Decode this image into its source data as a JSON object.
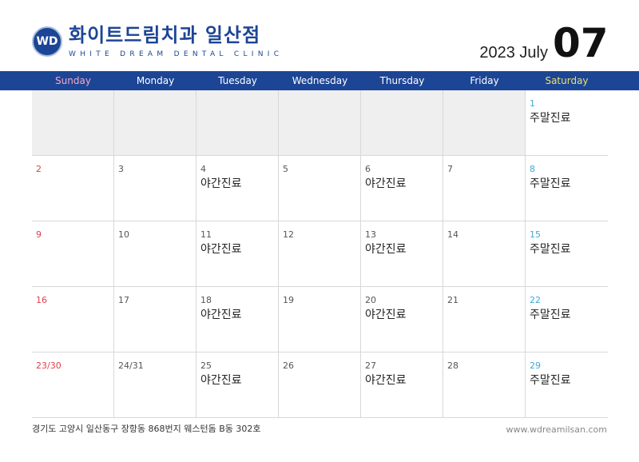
{
  "header": {
    "logo_text": "WD",
    "brand_ko": "화이트드림치과 일산점",
    "brand_en": "WHITE DREAM DENTAL CLINIC",
    "year_month": "2023 July",
    "month_num": "07"
  },
  "colors": {
    "bar": "#1d4595",
    "sunday_header": "#f4a8c8",
    "saturday_header": "#e8e070",
    "sunday": "#e04050",
    "saturday": "#40a8d8"
  },
  "days": [
    "Sunday",
    "Monday",
    "Tuesday",
    "Wednesday",
    "Thursday",
    "Friday",
    "Saturday"
  ],
  "weeks": [
    [
      {
        "d": ""
      },
      {
        "d": ""
      },
      {
        "d": ""
      },
      {
        "d": ""
      },
      {
        "d": ""
      },
      {
        "d": ""
      },
      {
        "d": "1",
        "n": "주말진료"
      }
    ],
    [
      {
        "d": "2"
      },
      {
        "d": "3"
      },
      {
        "d": "4",
        "n": "야간진료"
      },
      {
        "d": "5"
      },
      {
        "d": "6",
        "n": "야간진료"
      },
      {
        "d": "7"
      },
      {
        "d": "8",
        "n": "주말진료"
      }
    ],
    [
      {
        "d": "9"
      },
      {
        "d": "10"
      },
      {
        "d": "11",
        "n": "야간진료"
      },
      {
        "d": "12"
      },
      {
        "d": "13",
        "n": "야간진료"
      },
      {
        "d": "14"
      },
      {
        "d": "15",
        "n": "주말진료"
      }
    ],
    [
      {
        "d": "16"
      },
      {
        "d": "17"
      },
      {
        "d": "18",
        "n": "야간진료"
      },
      {
        "d": "19"
      },
      {
        "d": "20",
        "n": "야간진료"
      },
      {
        "d": "21"
      },
      {
        "d": "22",
        "n": "주말진료"
      }
    ],
    [
      {
        "d": "23/30"
      },
      {
        "d": "24/31"
      },
      {
        "d": "25",
        "n": "야간진료"
      },
      {
        "d": "26"
      },
      {
        "d": "27",
        "n": "야간진료"
      },
      {
        "d": "28"
      },
      {
        "d": "29",
        "n": "주말진료"
      }
    ]
  ],
  "footer": {
    "address": "경기도 고양시 일산동구 장항동 868번지 웨스턴돔 B동 302호",
    "url": "www.wdreamilsan.com"
  }
}
